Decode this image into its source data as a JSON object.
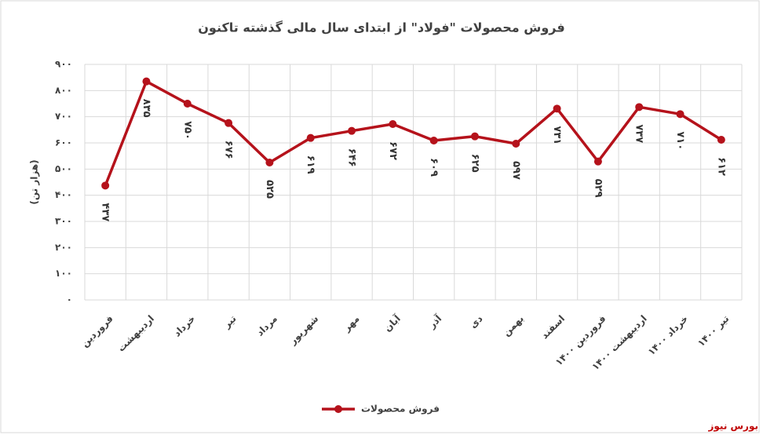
{
  "chart_data": {
    "type": "line",
    "title": "فروش محصولات \"فولاد\" از ابتدای سال مالی گذشته تاکنون",
    "y_label": "(هزار تن)",
    "categories": [
      "فروردین",
      "اردیبهشت",
      "خرداد",
      "تیر",
      "مرداد",
      "شهریور",
      "مهر",
      "آبان",
      "آذر",
      "دی",
      "بهمن",
      "اسفند",
      "فروردین ۱۴۰۰",
      "اردیبهشت ۱۴۰۰",
      "خرداد ۱۴۰۰",
      "تیر ۱۴۰۰"
    ],
    "series": [
      {
        "name": "فروش محصولات",
        "color": "#b5121b",
        "values": [
          437,
          835,
          750,
          676,
          525,
          619,
          646,
          672,
          609,
          625,
          597,
          731,
          529,
          737,
          710,
          612
        ],
        "value_labels": [
          "۴۳۷",
          "۸۳۵",
          "۷۵۰",
          "۶۷۶",
          "۵۲۵",
          "۶۱۹",
          "۶۴۶",
          "۶۷۲",
          "۶۰۹",
          "۶۲۵",
          "۵۹۷",
          "۷۳۱",
          "۵۲۹",
          "۷۳۷",
          "۷۱۰",
          "۶۱۲"
        ]
      }
    ],
    "ylim": [
      0,
      900
    ],
    "yticks": [
      {
        "value": 0,
        "label": "۰"
      },
      {
        "value": 100,
        "label": "۱۰۰"
      },
      {
        "value": 200,
        "label": "۲۰۰"
      },
      {
        "value": 300,
        "label": "۳۰۰"
      },
      {
        "value": 400,
        "label": "۴۰۰"
      },
      {
        "value": 500,
        "label": "۵۰۰"
      },
      {
        "value": 600,
        "label": "۶۰۰"
      },
      {
        "value": 700,
        "label": "۷۰۰"
      },
      {
        "value": 800,
        "label": "۸۰۰"
      },
      {
        "value": 900,
        "label": "۹۰۰"
      }
    ],
    "grid": true,
    "legend": "bottom",
    "source": "بورس نیوز"
  }
}
